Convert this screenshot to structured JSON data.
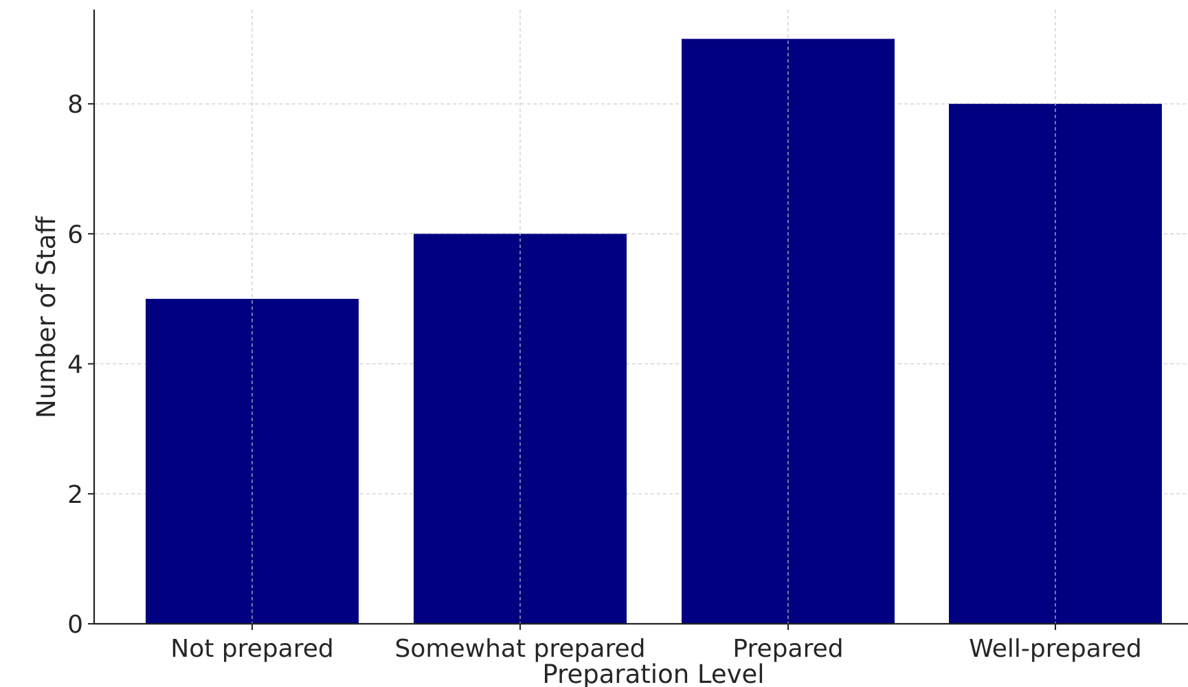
{
  "chart_data": {
    "type": "bar",
    "title": "",
    "xlabel": "Preparation Level",
    "ylabel": "Number of Staff",
    "categories": [
      "Not prepared",
      "Somewhat prepared",
      "Prepared",
      "Well-prepared"
    ],
    "values": [
      5,
      6,
      9,
      8
    ],
    "y_ticks": [
      0,
      2,
      4,
      6,
      8
    ],
    "ylim": [
      0,
      9.45
    ],
    "grid": true,
    "bar_color": "#000080",
    "grid_color": "#c8c8c8"
  }
}
